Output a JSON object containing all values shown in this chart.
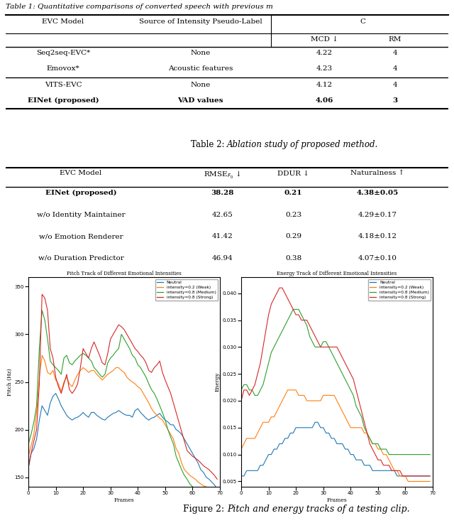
{
  "table1_title": "Table 1: Quantitative comparisons of converted speech with previous m",
  "table2_caption_normal": "Table 2: ",
  "table2_caption_italic": "Ablation study of proposed method.",
  "table1_rows": [
    [
      "Seq2seq-EVC*",
      "None",
      "4.22",
      "4"
    ],
    [
      "Emovox*",
      "Acoustic features",
      "4.23",
      "4"
    ],
    [
      "VITS-EVC",
      "None",
      "4.12",
      "4"
    ],
    [
      "EINet (proposed)",
      "VAD values",
      "4.06",
      "3"
    ]
  ],
  "table1_bold_rows": [
    3
  ],
  "table2_rows": [
    [
      "EINet (proposed)",
      "38.28",
      "0.21",
      "4.38±0.05"
    ],
    [
      "w/o Identity Maintainer",
      "42.65",
      "0.23",
      "4.29±0.17"
    ],
    [
      "w/o Emotion Renderer",
      "41.42",
      "0.29",
      "4.18±0.12"
    ],
    [
      "w/o Duration Predictor",
      "46.94",
      "0.38",
      "4.07±0.10"
    ]
  ],
  "table2_bold_rows": [
    0
  ],
  "fig_caption_normal": "Figure 2: ",
  "fig_caption_italic": "Pitch and energy tracks of a testing clip.",
  "pitch_title": "Pitch Track of Different Emotional Intensities",
  "energy_title": "Energy Track of Different Emotional Intensities",
  "pitch_xlabel": "Frames",
  "energy_xlabel": "Frames",
  "pitch_ylabel": "Pitch (Hz)",
  "energy_ylabel": "Energy",
  "legend_labels": [
    "Neutral",
    "intensity=0.2 (Weak)",
    "intensity=0.8 (Medium)",
    "intensity=0.8 (Strong)"
  ],
  "line_colors": [
    "#1f77b4",
    "#ff7f0e",
    "#2ca02c",
    "#d62728"
  ],
  "pitch_neutral": [
    160,
    175,
    180,
    190,
    210,
    225,
    220,
    215,
    228,
    235,
    238,
    232,
    225,
    220,
    215,
    212,
    210,
    212,
    213,
    215,
    218,
    215,
    213,
    218,
    218,
    215,
    213,
    211,
    210,
    213,
    215,
    217,
    218,
    220,
    218,
    216,
    215,
    215,
    213,
    220,
    222,
    218,
    215,
    212,
    210,
    212,
    213,
    215,
    217,
    213,
    210,
    208,
    205,
    205,
    200,
    198,
    195,
    190,
    185,
    180,
    175,
    170,
    165,
    158,
    155,
    150,
    148,
    145,
    142,
    138
  ],
  "pitch_weak": [
    172,
    183,
    195,
    218,
    255,
    278,
    272,
    260,
    258,
    262,
    252,
    248,
    240,
    250,
    255,
    248,
    245,
    252,
    258,
    262,
    265,
    263,
    260,
    262,
    262,
    258,
    255,
    252,
    255,
    258,
    260,
    262,
    265,
    265,
    262,
    260,
    255,
    252,
    250,
    248,
    245,
    243,
    238,
    233,
    228,
    222,
    218,
    215,
    212,
    210,
    205,
    200,
    195,
    190,
    180,
    175,
    165,
    158,
    155,
    152,
    150,
    148,
    145,
    143,
    141,
    140,
    138,
    135,
    133,
    130
  ],
  "pitch_medium": [
    185,
    195,
    208,
    225,
    285,
    325,
    315,
    295,
    272,
    268,
    265,
    262,
    258,
    275,
    278,
    270,
    268,
    272,
    275,
    278,
    280,
    278,
    275,
    272,
    265,
    262,
    258,
    255,
    258,
    270,
    275,
    278,
    282,
    285,
    300,
    295,
    290,
    285,
    278,
    275,
    268,
    265,
    260,
    255,
    248,
    242,
    238,
    232,
    225,
    218,
    210,
    200,
    192,
    185,
    172,
    165,
    158,
    152,
    148,
    143,
    140,
    138,
    135,
    133,
    130,
    128,
    126,
    125,
    123,
    121
  ],
  "pitch_strong": [
    160,
    175,
    188,
    200,
    248,
    342,
    338,
    325,
    285,
    275,
    255,
    245,
    238,
    248,
    258,
    242,
    238,
    242,
    248,
    265,
    285,
    280,
    275,
    285,
    292,
    285,
    278,
    270,
    268,
    280,
    295,
    300,
    305,
    310,
    308,
    305,
    300,
    295,
    290,
    285,
    282,
    278,
    275,
    270,
    262,
    260,
    265,
    268,
    272,
    260,
    252,
    245,
    238,
    228,
    218,
    208,
    198,
    188,
    178,
    175,
    172,
    170,
    168,
    165,
    162,
    160,
    158,
    155,
    152,
    148
  ],
  "energy_neutral": [
    0.006,
    0.006,
    0.007,
    0.007,
    0.007,
    0.007,
    0.007,
    0.008,
    0.008,
    0.009,
    0.01,
    0.01,
    0.011,
    0.011,
    0.012,
    0.012,
    0.013,
    0.013,
    0.014,
    0.014,
    0.015,
    0.015,
    0.015,
    0.015,
    0.015,
    0.015,
    0.015,
    0.016,
    0.016,
    0.015,
    0.015,
    0.014,
    0.014,
    0.013,
    0.013,
    0.012,
    0.012,
    0.012,
    0.011,
    0.011,
    0.01,
    0.01,
    0.009,
    0.009,
    0.009,
    0.008,
    0.008,
    0.008,
    0.007,
    0.007,
    0.007,
    0.007,
    0.007,
    0.007,
    0.007,
    0.007,
    0.007,
    0.006,
    0.006,
    0.006,
    0.006,
    0.006,
    0.006,
    0.006,
    0.006,
    0.006,
    0.006,
    0.006,
    0.006,
    0.006
  ],
  "energy_weak": [
    0.011,
    0.012,
    0.013,
    0.013,
    0.013,
    0.013,
    0.014,
    0.015,
    0.016,
    0.016,
    0.016,
    0.017,
    0.017,
    0.018,
    0.019,
    0.02,
    0.021,
    0.022,
    0.022,
    0.022,
    0.022,
    0.021,
    0.021,
    0.021,
    0.02,
    0.02,
    0.02,
    0.02,
    0.02,
    0.02,
    0.021,
    0.021,
    0.021,
    0.021,
    0.021,
    0.02,
    0.019,
    0.018,
    0.017,
    0.016,
    0.015,
    0.015,
    0.015,
    0.015,
    0.015,
    0.014,
    0.014,
    0.013,
    0.012,
    0.012,
    0.011,
    0.011,
    0.01,
    0.01,
    0.009,
    0.008,
    0.007,
    0.007,
    0.006,
    0.006,
    0.006,
    0.005,
    0.005,
    0.005,
    0.005,
    0.005,
    0.005,
    0.005,
    0.005,
    0.005
  ],
  "energy_medium": [
    0.022,
    0.023,
    0.023,
    0.022,
    0.022,
    0.021,
    0.021,
    0.022,
    0.023,
    0.025,
    0.027,
    0.029,
    0.03,
    0.031,
    0.032,
    0.033,
    0.034,
    0.035,
    0.036,
    0.037,
    0.037,
    0.037,
    0.036,
    0.035,
    0.034,
    0.032,
    0.031,
    0.03,
    0.03,
    0.03,
    0.031,
    0.031,
    0.03,
    0.029,
    0.028,
    0.027,
    0.026,
    0.025,
    0.024,
    0.023,
    0.022,
    0.021,
    0.019,
    0.018,
    0.017,
    0.015,
    0.014,
    0.013,
    0.012,
    0.012,
    0.012,
    0.011,
    0.011,
    0.011,
    0.01,
    0.01,
    0.01,
    0.01,
    0.01,
    0.01,
    0.01,
    0.01,
    0.01,
    0.01,
    0.01,
    0.01,
    0.01,
    0.01,
    0.01,
    0.01
  ],
  "energy_strong": [
    0.02,
    0.022,
    0.022,
    0.021,
    0.022,
    0.023,
    0.025,
    0.027,
    0.03,
    0.033,
    0.036,
    0.038,
    0.039,
    0.04,
    0.041,
    0.041,
    0.04,
    0.039,
    0.038,
    0.037,
    0.036,
    0.036,
    0.035,
    0.035,
    0.035,
    0.034,
    0.033,
    0.032,
    0.031,
    0.03,
    0.03,
    0.03,
    0.03,
    0.03,
    0.03,
    0.03,
    0.029,
    0.028,
    0.027,
    0.026,
    0.025,
    0.024,
    0.022,
    0.02,
    0.018,
    0.016,
    0.014,
    0.012,
    0.011,
    0.01,
    0.009,
    0.009,
    0.008,
    0.008,
    0.008,
    0.007,
    0.007,
    0.007,
    0.007,
    0.006,
    0.006,
    0.006,
    0.006,
    0.006,
    0.006,
    0.006,
    0.006,
    0.006,
    0.006,
    0.006
  ],
  "pitch_ylim": [
    140,
    360
  ],
  "pitch_yticks": [
    150,
    200,
    250,
    300,
    350
  ],
  "energy_ylim": [
    0.004,
    0.043
  ],
  "energy_yticks": [
    0.005,
    0.01,
    0.015,
    0.02,
    0.025,
    0.03,
    0.035,
    0.04
  ],
  "x_ticks": [
    0,
    10,
    20,
    30,
    40,
    50,
    60,
    70
  ]
}
